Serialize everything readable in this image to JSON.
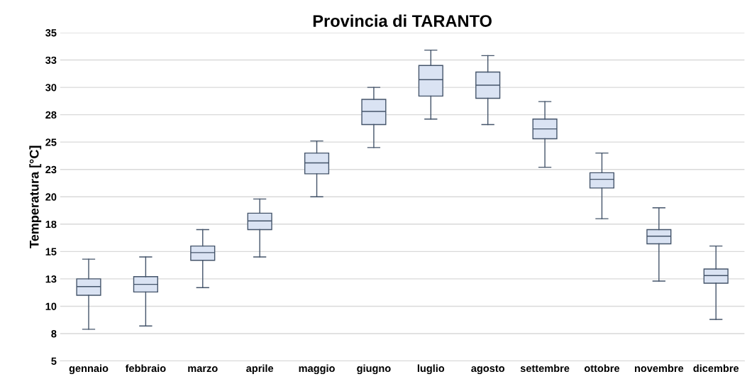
{
  "chart_data": {
    "type": "box",
    "title": "Provincia di TARANTO",
    "ylabel": "Temperatura [°C]",
    "categories": [
      "gennaio",
      "febbraio",
      "marzo",
      "aprile",
      "maggio",
      "giugno",
      "luglio",
      "agosto",
      "settembre",
      "ottobre",
      "novembre",
      "dicembre"
    ],
    "color": "#dae3f3",
    "boxes": [
      {
        "low": 7.9,
        "q1": 11.0,
        "median": 11.8,
        "q3": 12.5,
        "high": 14.3
      },
      {
        "low": 8.2,
        "q1": 11.3,
        "median": 12.0,
        "q3": 12.7,
        "high": 14.5
      },
      {
        "low": 11.7,
        "q1": 14.2,
        "median": 14.9,
        "q3": 15.5,
        "high": 17.0
      },
      {
        "low": 14.5,
        "q1": 17.0,
        "median": 17.8,
        "q3": 18.5,
        "high": 19.8
      },
      {
        "low": 20.0,
        "q1": 22.1,
        "median": 23.1,
        "q3": 24.0,
        "high": 25.1
      },
      {
        "low": 24.5,
        "q1": 26.6,
        "median": 27.8,
        "q3": 28.9,
        "high": 30.0
      },
      {
        "low": 27.1,
        "q1": 29.2,
        "median": 30.7,
        "q3": 32.0,
        "high": 33.4
      },
      {
        "low": 26.6,
        "q1": 29.0,
        "median": 30.2,
        "q3": 31.4,
        "high": 32.9
      },
      {
        "low": 22.7,
        "q1": 25.3,
        "median": 26.2,
        "q3": 27.1,
        "high": 28.7
      },
      {
        "low": 18.0,
        "q1": 20.8,
        "median": 21.6,
        "q3": 22.2,
        "high": 24.0
      },
      {
        "low": 12.3,
        "q1": 15.7,
        "median": 16.4,
        "q3": 17.0,
        "high": 19.0
      },
      {
        "low": 8.8,
        "q1": 12.1,
        "median": 12.8,
        "q3": 13.4,
        "high": 15.5
      }
    ],
    "ylim": [
      5,
      35
    ],
    "yticks": [
      5,
      {
        "value": 7.5,
        "label": "8"
      },
      10,
      {
        "value": 12.5,
        "label": "13"
      },
      15,
      {
        "value": 17.5,
        "label": "18"
      },
      20,
      {
        "value": 22.5,
        "label": "23"
      },
      25,
      {
        "value": 27.5,
        "label": "28"
      },
      30,
      {
        "value": 32.5,
        "label": "33"
      },
      35
    ],
    "grid": "y"
  }
}
